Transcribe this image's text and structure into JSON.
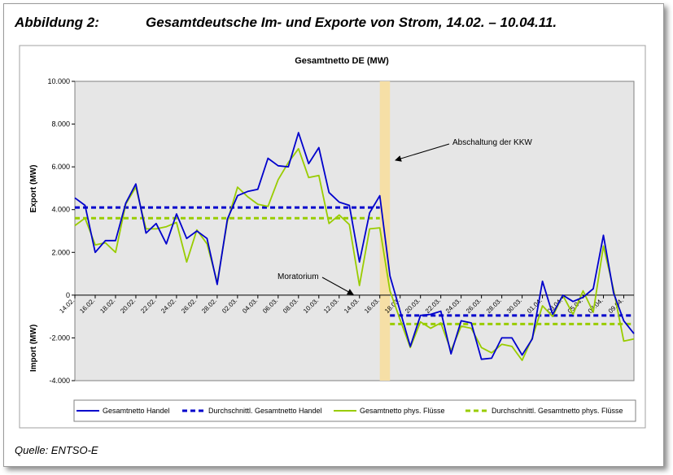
{
  "figure": {
    "number": "Abbildung 2:",
    "title": "Gesamtdeutsche Im- und Exporte von Strom, 14.02. – 10.04.11.",
    "source": "Quelle: ENTSO-E"
  },
  "chart_data": {
    "type": "line",
    "title": "Gesamtnetto DE (MW)",
    "ylabel_top": "Export (MW)",
    "ylabel_bottom": "Import (MW)",
    "ylim": [
      -4000,
      10000
    ],
    "y_ticks": [
      -4000,
      -2000,
      0,
      2000,
      4000,
      6000,
      8000,
      10000
    ],
    "y_tick_labels": [
      "-4.000",
      "-2.000",
      "0",
      "2.000",
      "4.000",
      "6.000",
      "8.000",
      "10.000"
    ],
    "grid": false,
    "legend": "bottom",
    "x_ticks": [
      "14.02.",
      "16.02.",
      "18.02.",
      "20.02.",
      "22.02.",
      "24.02.",
      "26.02.",
      "28.02.",
      "02.03.",
      "04.03.",
      "06.03.",
      "08.03.",
      "10.03.",
      "12.03.",
      "14.03.",
      "16.03.",
      "18.03.",
      "20.03.",
      "22.03.",
      "24.03.",
      "26.03.",
      "28.03.",
      "30.03.",
      "01.04.",
      "03.04.",
      "05.04.",
      "07.04.",
      "09.04."
    ],
    "x_tick_step_days": 2,
    "series": [
      {
        "name": "Gesamtnetto Handel",
        "style": "solid",
        "color": "#0000cc",
        "values": [
          4550,
          4200,
          2000,
          2550,
          2550,
          4300,
          5200,
          2900,
          3350,
          2400,
          3800,
          2650,
          3000,
          2650,
          500,
          3550,
          4650,
          4850,
          4950,
          6400,
          6050,
          6000,
          7600,
          6150,
          6900,
          4800,
          4350,
          4200,
          1550,
          3850,
          4650,
          900,
          -750,
          -2400,
          -950,
          -900,
          -750,
          -2750,
          -1200,
          -1300,
          -3000,
          -2950,
          -2000,
          -2000,
          -2800,
          -2050,
          650,
          -900,
          0,
          -300,
          -100,
          300,
          2800,
          100,
          -1200,
          -1800
        ]
      },
      {
        "name": "Durchschnittl. Gesamtnetto Handel",
        "style": "dashed",
        "color": "#0000cc",
        "segments": [
          {
            "from": "14.02.",
            "to": "16.03.",
            "value": 4100
          },
          {
            "from": "17.03.",
            "to": "10.04.",
            "value": -950
          }
        ]
      },
      {
        "name": "Gesamtnetto phys. Flüsse",
        "style": "solid",
        "color": "#99cc00",
        "values": [
          3250,
          3600,
          2350,
          2450,
          2000,
          4250,
          5050,
          3100,
          3100,
          3200,
          3400,
          1550,
          3050,
          2400,
          600,
          3450,
          5050,
          4600,
          4250,
          4150,
          5400,
          6200,
          6850,
          5500,
          5600,
          3350,
          3750,
          3300,
          450,
          3100,
          3150,
          200,
          -1150,
          -2450,
          -1250,
          -1550,
          -1300,
          -2600,
          -1450,
          -1550,
          -2450,
          -2700,
          -2300,
          -2400,
          -3050,
          -2000,
          -500,
          -1000,
          0,
          -900,
          200,
          -800,
          2300,
          250,
          -2150,
          -2050
        ]
      },
      {
        "name": "Durchschnittl. Gesamtnetto phys. Flüsse",
        "style": "dashed",
        "color": "#99cc00",
        "segments": [
          {
            "from": "14.02.",
            "to": "16.03.",
            "value": 3600
          },
          {
            "from": "17.03.",
            "to": "10.04.",
            "value": -1350
          }
        ]
      }
    ],
    "highlight": {
      "from": "16.03.",
      "to": "17.03.",
      "color": "#f6dfa6"
    },
    "annotations": [
      {
        "text": "Abschaltung der KKW"
      },
      {
        "text": "Moratorium"
      }
    ]
  }
}
